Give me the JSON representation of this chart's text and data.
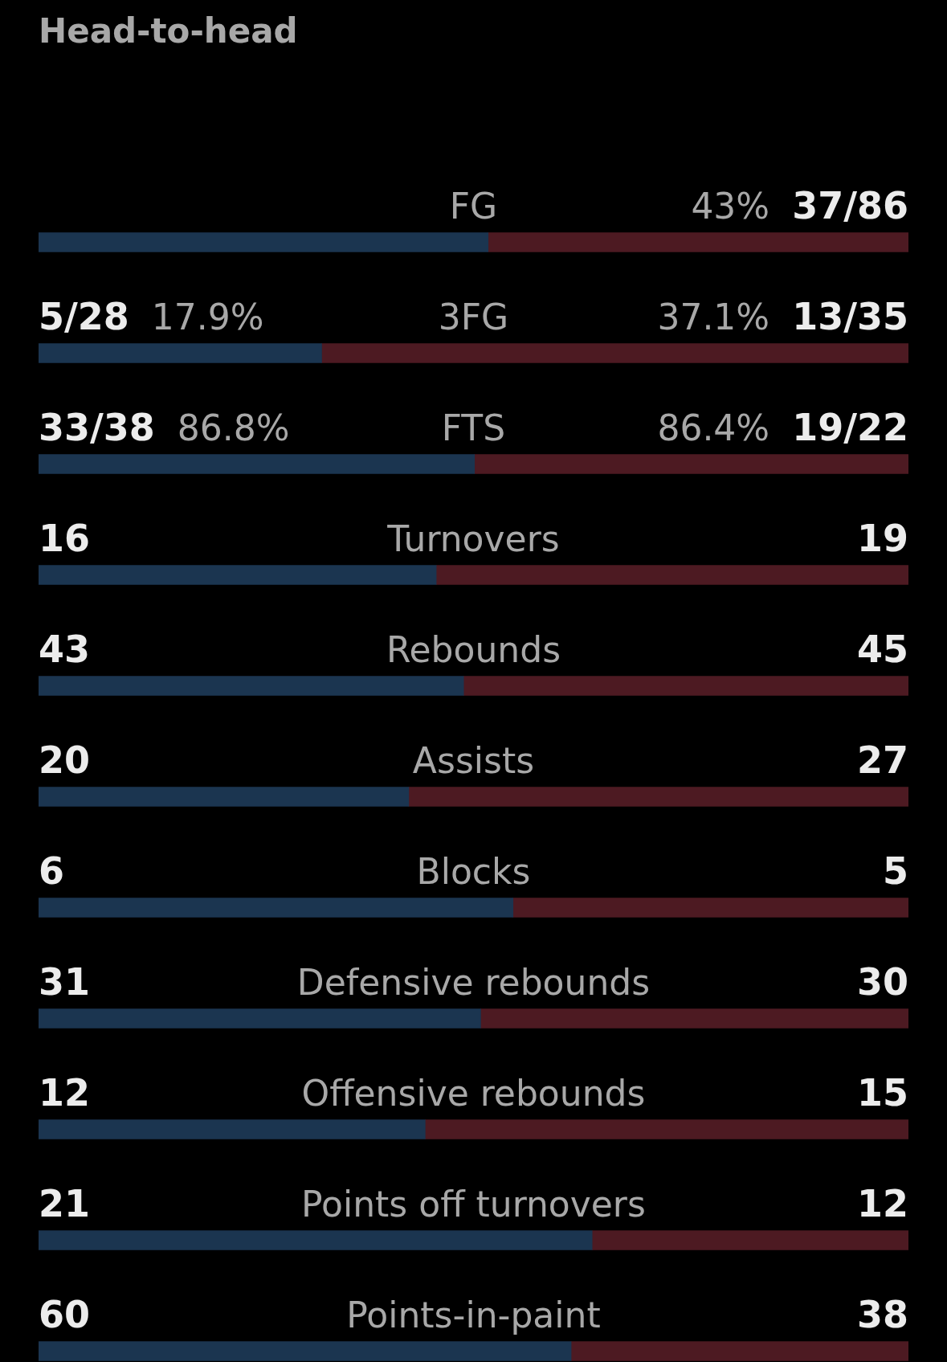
{
  "chart_data": [
    {
      "type": "bar",
      "title": "Head-to-head",
      "orientation": "horizontal",
      "stacked": true,
      "categories": [
        "FG"
      ],
      "xlim": [
        0,
        89
      ],
      "series": [
        {
          "color": "#1b3550",
          "values": [
            46
          ],
          "value_labels": [
            null
          ]
        },
        {
          "color": "#4d1a22",
          "values": [
            43
          ],
          "value_labels": [
            "43% 37/86"
          ]
        }
      ]
    },
    {
      "type": "bar",
      "orientation": "horizontal",
      "stacked": true,
      "categories": [
        "3FG"
      ],
      "xlim": [
        0,
        55
      ],
      "series": [
        {
          "color": "#1b3550",
          "values": [
            17.9
          ],
          "value_labels": [
            "5/28 17.9%"
          ]
        },
        {
          "color": "#4d1a22",
          "values": [
            37.1
          ],
          "value_labels": [
            "37.1% 13/35"
          ]
        }
      ]
    },
    {
      "type": "bar",
      "orientation": "horizontal",
      "stacked": true,
      "categories": [
        "FTS"
      ],
      "xlim": [
        0,
        173.2
      ],
      "series": [
        {
          "color": "#1b3550",
          "values": [
            86.8
          ],
          "value_labels": [
            "33/38 86.8%"
          ]
        },
        {
          "color": "#4d1a22",
          "values": [
            86.4
          ],
          "value_labels": [
            "86.4% 19/22"
          ]
        }
      ]
    },
    {
      "type": "bar",
      "orientation": "horizontal",
      "stacked": true,
      "categories": [
        "Turnovers"
      ],
      "xlim": [
        0,
        35
      ],
      "series": [
        {
          "color": "#1b3550",
          "values": [
            16
          ],
          "value_labels": [
            "16"
          ]
        },
        {
          "color": "#4d1a22",
          "values": [
            19
          ],
          "value_labels": [
            "19"
          ]
        }
      ]
    },
    {
      "type": "bar",
      "orientation": "horizontal",
      "stacked": true,
      "categories": [
        "Rebounds"
      ],
      "xlim": [
        0,
        88
      ],
      "series": [
        {
          "color": "#1b3550",
          "values": [
            43
          ],
          "value_labels": [
            "43"
          ]
        },
        {
          "color": "#4d1a22",
          "values": [
            45
          ],
          "value_labels": [
            "45"
          ]
        }
      ]
    },
    {
      "type": "bar",
      "orientation": "horizontal",
      "stacked": true,
      "categories": [
        "Assists"
      ],
      "xlim": [
        0,
        47
      ],
      "series": [
        {
          "color": "#1b3550",
          "values": [
            20
          ],
          "value_labels": [
            "20"
          ]
        },
        {
          "color": "#4d1a22",
          "values": [
            27
          ],
          "value_labels": [
            "27"
          ]
        }
      ]
    },
    {
      "type": "bar",
      "orientation": "horizontal",
      "stacked": true,
      "categories": [
        "Blocks"
      ],
      "xlim": [
        0,
        11
      ],
      "series": [
        {
          "color": "#1b3550",
          "values": [
            6
          ],
          "value_labels": [
            "6"
          ]
        },
        {
          "color": "#4d1a22",
          "values": [
            5
          ],
          "value_labels": [
            "5"
          ]
        }
      ]
    },
    {
      "type": "bar",
      "orientation": "horizontal",
      "stacked": true,
      "categories": [
        "Defensive rebounds"
      ],
      "xlim": [
        0,
        61
      ],
      "series": [
        {
          "color": "#1b3550",
          "values": [
            31
          ],
          "value_labels": [
            "31"
          ]
        },
        {
          "color": "#4d1a22",
          "values": [
            30
          ],
          "value_labels": [
            "30"
          ]
        }
      ]
    },
    {
      "type": "bar",
      "orientation": "horizontal",
      "stacked": true,
      "categories": [
        "Offensive rebounds"
      ],
      "xlim": [
        0,
        27
      ],
      "series": [
        {
          "color": "#1b3550",
          "values": [
            12
          ],
          "value_labels": [
            "12"
          ]
        },
        {
          "color": "#4d1a22",
          "values": [
            15
          ],
          "value_labels": [
            "15"
          ]
        }
      ]
    },
    {
      "type": "bar",
      "orientation": "horizontal",
      "stacked": true,
      "categories": [
        "Points off turnovers"
      ],
      "xlim": [
        0,
        33
      ],
      "series": [
        {
          "color": "#1b3550",
          "values": [
            21
          ],
          "value_labels": [
            "21"
          ]
        },
        {
          "color": "#4d1a22",
          "values": [
            12
          ],
          "value_labels": [
            "12"
          ]
        }
      ]
    },
    {
      "type": "bar",
      "orientation": "horizontal",
      "stacked": true,
      "categories": [
        "Points-in-paint"
      ],
      "xlim": [
        0,
        98
      ],
      "series": [
        {
          "color": "#1b3550",
          "values": [
            60
          ],
          "value_labels": [
            "60"
          ]
        },
        {
          "color": "#4d1a22",
          "values": [
            38
          ],
          "value_labels": [
            "38"
          ]
        }
      ]
    }
  ]
}
